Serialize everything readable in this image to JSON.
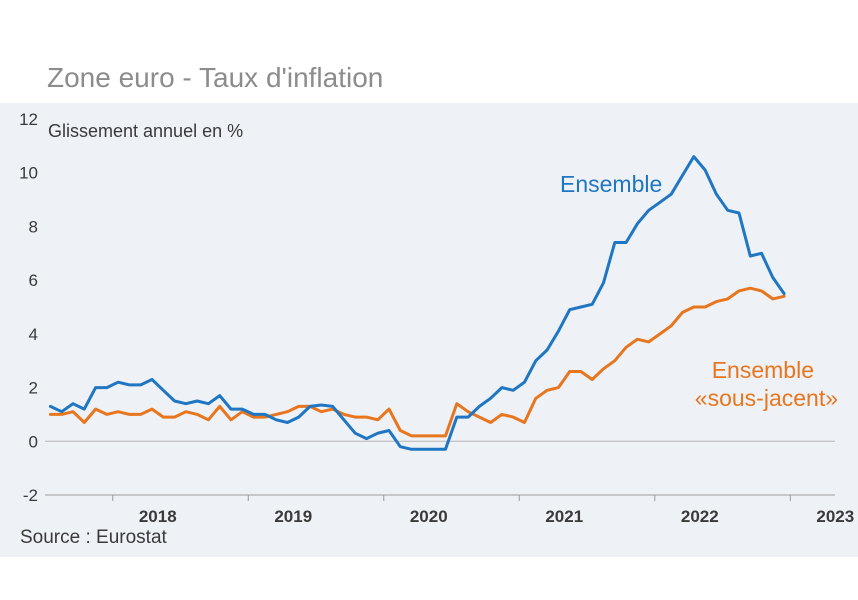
{
  "chart_data": {
    "type": "line",
    "title": "Zone euro - Taux d'inflation",
    "ylabel": "Glissement annuel en %",
    "source": "Source : Eurostat",
    "ylim": [
      -2,
      12
    ],
    "yticks": [
      -2,
      0,
      2,
      4,
      6,
      8,
      10,
      12
    ],
    "xlim": [
      2017.5,
      2023.33
    ],
    "xticks": [
      {
        "label": "2018",
        "x": 2018.0
      },
      {
        "label": "2019",
        "x": 2019.0
      },
      {
        "label": "2020",
        "x": 2020.0
      },
      {
        "label": "2021",
        "x": 2021.0
      },
      {
        "label": "2022",
        "x": 2022.0
      },
      {
        "label": "2023",
        "x": 2023.0
      }
    ],
    "start": 2017.54,
    "step": 0.0833,
    "series": [
      {
        "name": "Ensemble",
        "color": "#1f76c2",
        "values": [
          1.3,
          1.1,
          1.4,
          1.2,
          2.0,
          2.0,
          2.2,
          2.1,
          2.1,
          2.3,
          1.9,
          1.5,
          1.4,
          1.5,
          1.4,
          1.7,
          1.2,
          1.2,
          1.0,
          1.0,
          0.8,
          0.7,
          0.9,
          1.3,
          1.35,
          1.3,
          0.8,
          0.3,
          0.1,
          0.3,
          0.4,
          -0.2,
          -0.3,
          -0.3,
          -0.3,
          -0.3,
          0.9,
          0.9,
          1.3,
          1.6,
          2.0,
          1.9,
          2.2,
          3.0,
          3.4,
          4.1,
          4.9,
          5.0,
          5.1,
          5.9,
          7.4,
          7.4,
          8.1,
          8.6,
          8.9,
          9.2,
          9.9,
          10.6,
          10.1,
          9.2,
          8.6,
          8.5,
          6.9,
          7.0,
          6.1,
          5.5
        ]
      },
      {
        "name": "Ensemble «sous-jacent»",
        "color": "#e8761f",
        "values": [
          1.0,
          1.0,
          1.1,
          0.7,
          1.2,
          1.0,
          1.1,
          1.0,
          1.0,
          1.2,
          0.9,
          0.9,
          1.1,
          1.0,
          0.8,
          1.3,
          0.8,
          1.1,
          0.9,
          0.9,
          1.0,
          1.1,
          1.3,
          1.3,
          1.1,
          1.2,
          1.0,
          0.9,
          0.9,
          0.8,
          1.2,
          0.4,
          0.2,
          0.2,
          0.2,
          0.2,
          1.4,
          1.1,
          0.9,
          0.7,
          1.0,
          0.9,
          0.7,
          1.6,
          1.9,
          2.0,
          2.6,
          2.6,
          2.3,
          2.7,
          3.0,
          3.5,
          3.8,
          3.7,
          4.0,
          4.3,
          4.8,
          5.0,
          5.0,
          5.2,
          5.3,
          5.6,
          5.7,
          5.6,
          5.3,
          5.4
        ]
      }
    ],
    "labels": {
      "ensemble": "Ensemble",
      "sous_jacent_line1": "Ensemble",
      "sous_jacent_line2": "«sous-jacent»"
    }
  }
}
